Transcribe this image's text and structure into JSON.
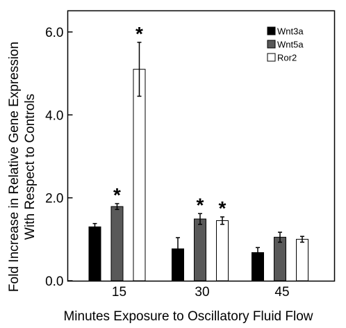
{
  "chart_data": {
    "type": "bar",
    "categories": [
      "15",
      "30",
      "45"
    ],
    "series": [
      {
        "name": "Wnt3a",
        "color": "#000000",
        "values": [
          1.3,
          0.77,
          0.68
        ],
        "errors": [
          0.08,
          0.27,
          0.12
        ],
        "significant": [
          false,
          false,
          false
        ]
      },
      {
        "name": "Wnt5a",
        "color": "#595959",
        "values": [
          1.79,
          1.49,
          1.05
        ],
        "errors": [
          0.07,
          0.13,
          0.12
        ],
        "significant": [
          true,
          true,
          false
        ]
      },
      {
        "name": "Ror2",
        "color": "#ffffff",
        "values": [
          5.1,
          1.45,
          1.0
        ],
        "errors": [
          0.65,
          0.09,
          0.07
        ],
        "significant": [
          true,
          true,
          false
        ]
      }
    ],
    "xlabel": "Minutes Exposure to Oscillatory Fluid Flow",
    "ylabel_line1": "Fold Increase in Relative Gene Expression",
    "ylabel_line2": "With Respect to Controls",
    "ylim": [
      0,
      6.0
    ],
    "yticks": [
      "0.0",
      "2.0",
      "4.0",
      "6.0"
    ],
    "significance_marker": "*",
    "legend_position": "top-right",
    "grid": false
  }
}
